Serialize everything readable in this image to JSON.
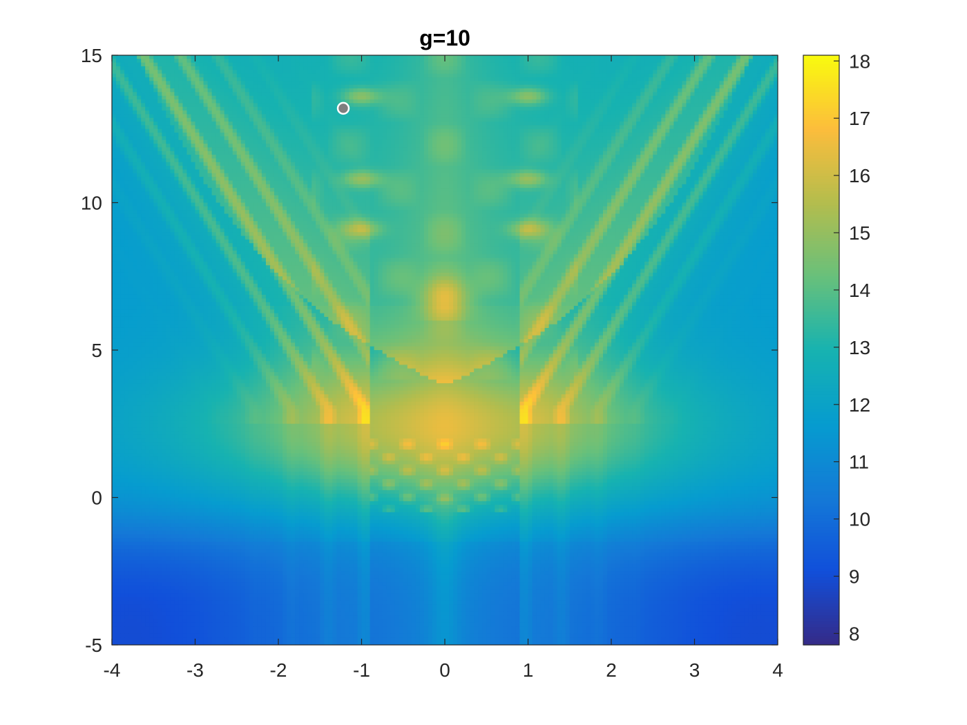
{
  "chart_data": {
    "type": "heatmap",
    "title": "g=10",
    "xlabel": "",
    "ylabel": "",
    "xlim": [
      -4,
      4
    ],
    "ylim": [
      -5,
      15
    ],
    "xticks": [
      "-4",
      "-3",
      "-2",
      "-1",
      "0",
      "1",
      "2",
      "3",
      "4"
    ],
    "yticks": [
      "-5",
      "0",
      "5",
      "10",
      "15"
    ],
    "colorbar": {
      "range": [
        7.8,
        18.1
      ],
      "ticks": [
        "8",
        "9",
        "10",
        "11",
        "12",
        "13",
        "14",
        "15",
        "16",
        "17",
        "18"
      ],
      "colormap": "parula"
    },
    "marker": {
      "x": -1.22,
      "y": 13.2,
      "fill": "#7f7f7f",
      "stroke": "#ffffff"
    },
    "grid": false
  }
}
